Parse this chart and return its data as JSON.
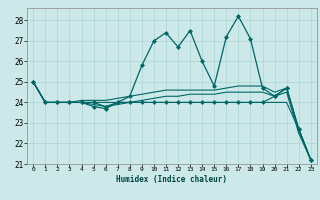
{
  "title": "",
  "xlabel": "Humidex (Indice chaleur)",
  "ylabel": "",
  "background_color": "#cce8e8",
  "grid_color": "#aad4d4",
  "line_color": "#006666",
  "xlim": [
    -0.5,
    23.5
  ],
  "ylim": [
    21,
    28.6
  ],
  "xticks": [
    0,
    1,
    2,
    3,
    4,
    5,
    6,
    7,
    8,
    9,
    10,
    11,
    12,
    13,
    14,
    15,
    16,
    17,
    18,
    19,
    20,
    21,
    22,
    23
  ],
  "yticks": [
    21,
    22,
    23,
    24,
    25,
    26,
    27,
    28
  ],
  "series": [
    {
      "x": [
        0,
        1,
        2,
        3,
        4,
        5,
        6,
        7,
        8,
        9,
        10,
        11,
        12,
        13,
        14,
        15,
        16,
        17,
        18,
        19,
        20,
        21,
        22,
        23
      ],
      "y": [
        25,
        24,
        24,
        24,
        24,
        23.8,
        23.7,
        24,
        24.3,
        25.8,
        27,
        27.4,
        26.7,
        27.5,
        26,
        24.8,
        27.2,
        28.2,
        27.1,
        24.7,
        24.3,
        24.7,
        22.7,
        21.2
      ],
      "marker": "D",
      "markersize": 2.0,
      "linewidth": 0.9
    },
    {
      "x": [
        0,
        1,
        2,
        3,
        4,
        5,
        6,
        7,
        8,
        9,
        10,
        11,
        12,
        13,
        14,
        15,
        16,
        17,
        18,
        19,
        20,
        21,
        22,
        23
      ],
      "y": [
        25,
        24,
        24,
        24,
        24,
        24,
        23.8,
        24,
        24,
        24,
        24,
        24,
        24,
        24,
        24,
        24,
        24,
        24,
        24,
        24,
        24.3,
        24.7,
        22.7,
        21.2
      ],
      "marker": "D",
      "markersize": 2.0,
      "linewidth": 0.8
    },
    {
      "x": [
        0,
        1,
        2,
        3,
        4,
        5,
        6,
        7,
        8,
        9,
        10,
        11,
        12,
        13,
        14,
        15,
        16,
        17,
        18,
        19,
        20,
        21,
        22,
        23
      ],
      "y": [
        25,
        24,
        24,
        24,
        24,
        24,
        24,
        24,
        24,
        24,
        24,
        24,
        24,
        24,
        24,
        24,
        24,
        24,
        24,
        24,
        24,
        24,
        22.7,
        21.2
      ],
      "marker": null,
      "markersize": 0,
      "linewidth": 0.8
    },
    {
      "x": [
        0,
        1,
        2,
        3,
        4,
        5,
        6,
        7,
        8,
        9,
        10,
        11,
        12,
        13,
        14,
        15,
        16,
        17,
        18,
        19,
        20,
        21,
        22,
        23
      ],
      "y": [
        25,
        24,
        24,
        24,
        24.1,
        24.1,
        24.1,
        24.2,
        24.3,
        24.4,
        24.5,
        24.6,
        24.6,
        24.6,
        24.6,
        24.6,
        24.7,
        24.8,
        24.8,
        24.8,
        24.5,
        24.7,
        22.7,
        21.2
      ],
      "marker": null,
      "markersize": 0,
      "linewidth": 0.8
    },
    {
      "x": [
        0,
        1,
        2,
        3,
        4,
        5,
        6,
        7,
        8,
        9,
        10,
        11,
        12,
        13,
        14,
        15,
        16,
        17,
        18,
        19,
        20,
        21,
        22,
        23
      ],
      "y": [
        25,
        24,
        24,
        24,
        24,
        23.9,
        23.8,
        23.9,
        24,
        24.1,
        24.2,
        24.3,
        24.3,
        24.4,
        24.4,
        24.4,
        24.5,
        24.5,
        24.5,
        24.5,
        24.3,
        24.5,
        22.5,
        21.2
      ],
      "marker": null,
      "markersize": 0,
      "linewidth": 0.8
    }
  ]
}
